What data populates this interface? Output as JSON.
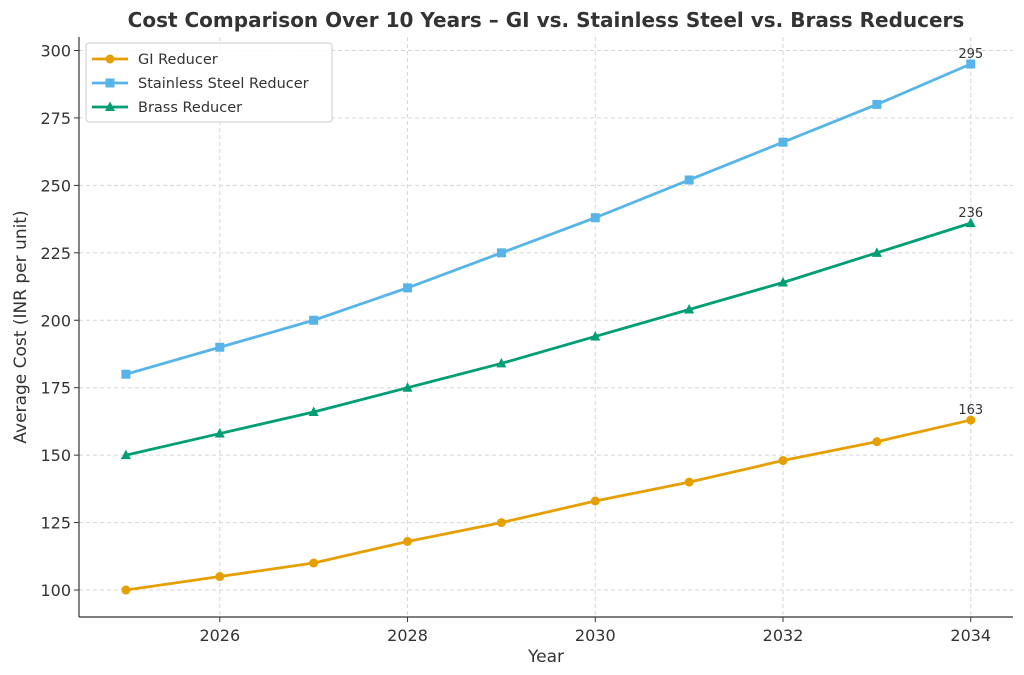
{
  "chart_data": {
    "type": "line",
    "title": "Cost Comparison Over 10 Years – GI vs. Stainless Steel vs. Brass Reducers",
    "xlabel": "Year",
    "ylabel": "Average Cost (INR per unit)",
    "x": [
      2025,
      2026,
      2027,
      2028,
      2029,
      2030,
      2031,
      2032,
      2033,
      2034
    ],
    "xlim": [
      2024.5,
      2034.45
    ],
    "ylim": [
      90,
      305
    ],
    "xticks": [
      "2026",
      "2028",
      "2030",
      "2032",
      "2034"
    ],
    "yticks": [
      "100",
      "125",
      "150",
      "175",
      "200",
      "225",
      "250",
      "275",
      "300"
    ],
    "grid": true,
    "legend_position": "top-left",
    "series": [
      {
        "name": "GI Reducer",
        "color": "#E69F00",
        "marker": "circle",
        "values": [
          100,
          105,
          110,
          118,
          125,
          133,
          140,
          148,
          155,
          163
        ],
        "end_label": "163"
      },
      {
        "name": "Stainless Steel Reducer",
        "color": "#56B4E9",
        "marker": "square",
        "values": [
          180,
          190,
          200,
          212,
          225,
          238,
          252,
          266,
          280,
          295
        ],
        "end_label": "295"
      },
      {
        "name": "Brass Reducer",
        "color": "#009E73",
        "marker": "triangle",
        "values": [
          150,
          158,
          166,
          175,
          184,
          194,
          204,
          214,
          225,
          236
        ],
        "end_label": "236"
      }
    ]
  }
}
